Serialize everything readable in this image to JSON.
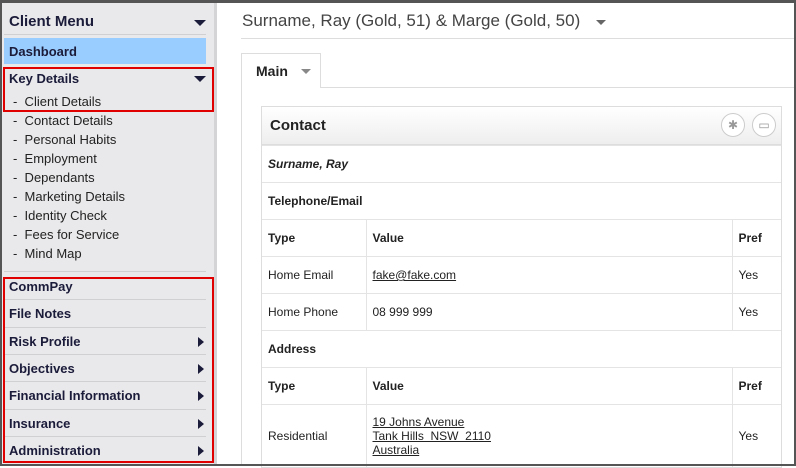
{
  "sidebar": {
    "menu_title": "Client Menu",
    "dashboard": "Dashboard",
    "key_details": "Key Details",
    "sub_items": [
      "Client Details",
      "Contact Details",
      "Personal Habits",
      "Employment",
      "Dependants",
      "Marketing Details",
      "Identity Check",
      "Fees for Service",
      "Mind Map"
    ],
    "groups": [
      {
        "label": "CommPay",
        "arrow": false
      },
      {
        "label": "File Notes",
        "arrow": false
      },
      {
        "label": "Risk Profile",
        "arrow": true
      },
      {
        "label": "Objectives",
        "arrow": true
      },
      {
        "label": "Financial Information",
        "arrow": true
      },
      {
        "label": "Insurance",
        "arrow": true
      },
      {
        "label": "Administration",
        "arrow": true
      }
    ]
  },
  "header": {
    "title": "Surname, Ray (Gold, 51) & Marge (Gold, 50)"
  },
  "tabs": [
    {
      "label": "Main"
    }
  ],
  "panel": {
    "title": "Contact",
    "person": "Surname, Ray",
    "telephone_section": "Telephone/Email",
    "columns": [
      "Type",
      "Value",
      "Pref"
    ],
    "phone_rows": [
      {
        "type": "Home Email",
        "value": "fake@fake.com",
        "pref": "Yes"
      },
      {
        "type": "Home Phone",
        "value": "08 999 999",
        "pref": "Yes"
      }
    ],
    "address_section": "Address",
    "address_rows": [
      {
        "type": "Residential",
        "line1": "19 Johns Avenue",
        "line2": "Tank Hills  NSW  2110",
        "line3": "Australia",
        "pref": "Yes"
      }
    ]
  },
  "colors": {
    "highlight": "#99ccff",
    "annotation_box": "#e00000"
  }
}
